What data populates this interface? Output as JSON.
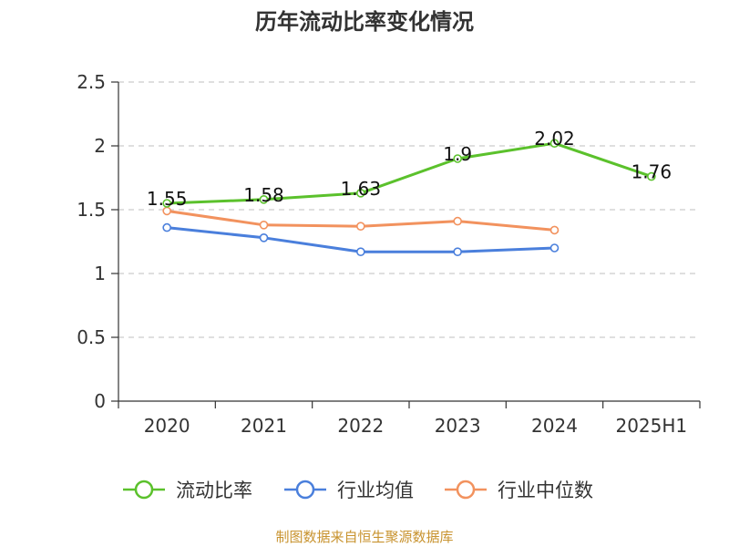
{
  "chart_data": {
    "type": "line",
    "title": "历年流动比率变化情况",
    "categories": [
      "2020",
      "2021",
      "2022",
      "2023",
      "2024",
      "2025H1"
    ],
    "ylim": [
      0,
      2.5
    ],
    "yticks": [
      "0",
      "0.5",
      "1",
      "1.5",
      "2",
      "2.5"
    ],
    "grid": "horizontal dashed",
    "legend_position": "bottom",
    "series": [
      {
        "name": "流动比率",
        "color": "#5bc12c",
        "values": [
          1.55,
          1.58,
          1.63,
          1.9,
          2.02,
          1.76
        ],
        "labels": [
          "1.55",
          "1.58",
          "1.63",
          "1.9",
          "2.02",
          "1.76"
        ]
      },
      {
        "name": "行业均值",
        "color": "#4a7fdc",
        "values": [
          1.36,
          1.28,
          1.17,
          1.17,
          1.2,
          null
        ]
      },
      {
        "name": "行业中位数",
        "color": "#f2925e",
        "values": [
          1.49,
          1.38,
          1.37,
          1.41,
          1.34,
          null
        ]
      }
    ]
  },
  "source_note": "制图数据来自恒生聚源数据库"
}
